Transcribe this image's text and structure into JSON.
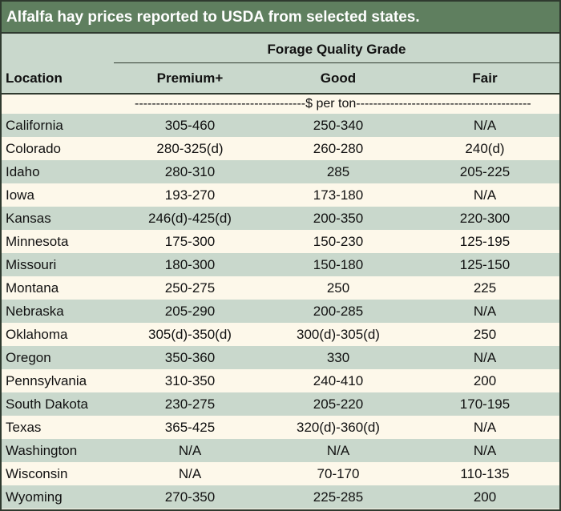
{
  "title": "Alfalfa hay prices reported to USDA from selected states.",
  "header": {
    "group": "Forage Quality Grade",
    "location": "Location",
    "columns": [
      "Premium+",
      "Good",
      "Fair"
    ]
  },
  "unit_row": "----------------------------------------$ per ton-----------------------------------------",
  "rows": [
    {
      "location": "California",
      "premium": "305-460",
      "good": "250-340",
      "fair": "N/A"
    },
    {
      "location": "Colorado",
      "premium": "280-325(d)",
      "good": "260-280",
      "fair": "240(d)"
    },
    {
      "location": "Idaho",
      "premium": "280-310",
      "good": "285",
      "fair": "205-225"
    },
    {
      "location": "Iowa",
      "premium": "193-270",
      "good": "173-180",
      "fair": "N/A"
    },
    {
      "location": "Kansas",
      "premium": "246(d)-425(d)",
      "good": "200-350",
      "fair": "220-300"
    },
    {
      "location": "Minnesota",
      "premium": "175-300",
      "good": "150-230",
      "fair": "125-195"
    },
    {
      "location": "Missouri",
      "premium": "180-300",
      "good": "150-180",
      "fair": "125-150"
    },
    {
      "location": "Montana",
      "premium": "250-275",
      "good": "250",
      "fair": "225"
    },
    {
      "location": "Nebraska",
      "premium": "205-290",
      "good": "200-285",
      "fair": "N/A"
    },
    {
      "location": "Oklahoma",
      "premium": "305(d)-350(d)",
      "good": "300(d)-305(d)",
      "fair": "250"
    },
    {
      "location": "Oregon",
      "premium": "350-360",
      "good": "330",
      "fair": "N/A"
    },
    {
      "location": "Pennsylvania",
      "premium": "310-350",
      "good": "240-410",
      "fair": "200"
    },
    {
      "location": "South Dakota",
      "premium": "230-275",
      "good": "205-220",
      "fair": "170-195"
    },
    {
      "location": "Texas",
      "premium": "365-425",
      "good": "320(d)-360(d)",
      "fair": "N/A"
    },
    {
      "location": "Washington",
      "premium": "N/A",
      "good": "N/A",
      "fair": "N/A"
    },
    {
      "location": "Wisconsin",
      "premium": "N/A",
      "good": "70-170",
      "fair": "110-135"
    },
    {
      "location": "Wyoming",
      "premium": "270-350",
      "good": "225-285",
      "fair": "200"
    }
  ],
  "colors": {
    "title_bg": "#5f7f5f",
    "band": "#c9d8cc",
    "cream": "#fdf8ea",
    "border": "#2f3a2f"
  }
}
